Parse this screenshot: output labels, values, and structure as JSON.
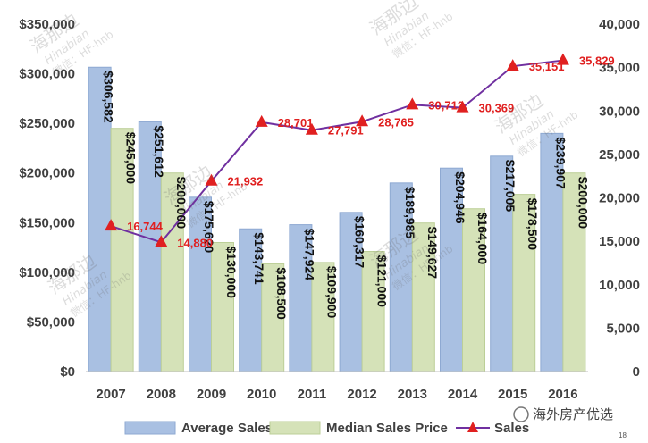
{
  "chart_data": {
    "type": "bar",
    "categories": [
      "2007",
      "2008",
      "2009",
      "2010",
      "2011",
      "2012",
      "2013",
      "2014",
      "2015",
      "2016"
    ],
    "series": [
      {
        "name": "Average Sales Price",
        "kind": "bar",
        "axis": "left",
        "color": "#a9c0e2",
        "values": [
          306582,
          251612,
          175620,
          143741,
          147924,
          160317,
          189985,
          204946,
          217005,
          239907
        ],
        "labels": [
          "$306,582",
          "$251,612",
          "$175,620",
          "$143,741",
          "$147,924",
          "$160,317",
          "$189,985",
          "$204,946",
          "$217,005",
          "$239,907"
        ]
      },
      {
        "name": "Median Sales Price",
        "kind": "bar",
        "axis": "left",
        "color": "#d5e2b8",
        "values": [
          245000,
          200000,
          130000,
          108500,
          109900,
          121000,
          149627,
          164000,
          178500,
          200000
        ],
        "labels": [
          "$245,000",
          "$200,000",
          "$130,000",
          "$108,500",
          "$109,900",
          "$121,000",
          "$149,627",
          "$164,000",
          "$178,500",
          "$200,000"
        ]
      },
      {
        "name": "Sales",
        "kind": "line",
        "axis": "right",
        "color": "#7030a0",
        "marker_color": "#e02020",
        "values": [
          16744,
          14880,
          21932,
          28701,
          27791,
          28765,
          30712,
          30369,
          35151,
          35829
        ],
        "labels": [
          "16,744",
          "14,880",
          "21,932",
          "28,701",
          "27,791",
          "28,765",
          "30,712",
          "30,369",
          "35,151",
          "35,829"
        ]
      }
    ],
    "y_left": {
      "range": [
        0,
        350000
      ],
      "ticks": [
        0,
        50000,
        100000,
        150000,
        200000,
        250000,
        300000,
        350000
      ],
      "tick_labels": [
        "$0",
        "$50,000",
        "$100,000",
        "$150,000",
        "$200,000",
        "$250,000",
        "$300,000",
        "$350,000"
      ]
    },
    "y_right": {
      "range": [
        0,
        40000
      ],
      "ticks": [
        0,
        5000,
        10000,
        15000,
        20000,
        25000,
        30000,
        35000,
        40000
      ],
      "tick_labels": [
        "0",
        "5,000",
        "10,000",
        "15,000",
        "20,000",
        "25,000",
        "30,000",
        "35,000",
        "40,000"
      ]
    },
    "grid": false,
    "legend_position": "bottom-center",
    "title": "",
    "xlabel": "",
    "ylabel": ""
  },
  "watermark": {
    "brand": "海外房产优选",
    "line1": "海那边",
    "line2": "Hinabian",
    "line3": "微信：HF-hnb"
  },
  "page_number": "18"
}
